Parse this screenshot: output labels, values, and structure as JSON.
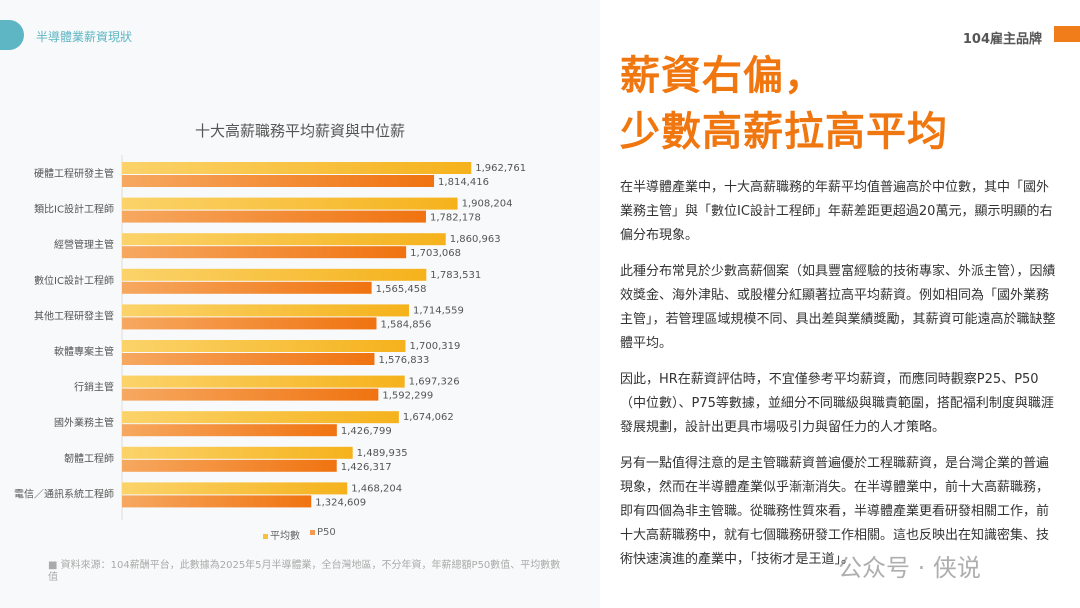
{
  "header": {
    "section": "半導體業薪資現狀",
    "brand": "104雇主品牌"
  },
  "headline": [
    "薪資右偏，",
    "少數高薪拉高平均"
  ],
  "paragraphs": [
    "在半導體產業中，十大高薪職務的年薪平均值普遍高於中位數，其中「國外業務主管」與「數位IC設計工程師」年薪差距更超過20萬元，顯示明顯的右偏分布現象。",
    "此種分布常見於少數高薪個案（如具豐富經驗的技術專家、外派主管），因績效獎金、海外津貼、或股權分紅顯著拉高平均薪資。例如相同為「國外業務主管」，若管理區域規模不同、具出差與業績獎勵，其薪資可能遠高於職缺整體平均。",
    "因此，HR在薪資評估時，不宜僅參考平均薪資，而應同時觀察P25、P50（中位數）、P75等數據，並細分不同職級與職責範圍，搭配福利制度與職涯發展規劃，設計出更具市場吸引力與留任力的人才策略。",
    "另有一點值得注意的是主管職薪資普遍優於工程職薪資，是台灣企業的普遍現象，然而在半導體產業似乎漸漸消失。在半導體業中，前十大高薪職務，即有四個為非主管職。從職務性質來看，半導體產業更看研發相關工作，前十大高薪職務中，就有七個職務研發工作相關。這也反映出在知識密集、技術快速演進的產業中，「技術才是王道」。"
  ],
  "source": "資料來源：104薪酬平台，此數據為2025年5月半導體業，全台灣地區，不分年資，年薪總額P50數值、平均數數值",
  "watermark": "公众号 · 侠说",
  "colors": {
    "accent": "#f0760f",
    "teal": "#5eb6c4",
    "avg": "#f7b92a",
    "p50": "#f07c1a"
  },
  "chart_data": {
    "type": "bar",
    "orientation": "horizontal",
    "title": "十大高薪職務平均薪資與中位薪",
    "categories": [
      "硬體工程研發主管",
      "類比IC設計工程師",
      "經營管理主管",
      "數位IC設計工程師",
      "其他工程研發主管",
      "軟體專案主管",
      "行銷主管",
      "國外業務主管",
      "韌體工程師",
      "電信／通訊系統工程師"
    ],
    "series": [
      {
        "name": "平均數",
        "labels": [
          "1,962,761",
          "1,908,204",
          "1,860,963",
          "1,783,531",
          "1,714,559",
          "1,700,319",
          "1,697,326",
          "1,674,062",
          "1,489,935",
          "1,468,204"
        ],
        "values": [
          1962761,
          1908204,
          1860963,
          1783531,
          1714559,
          1700319,
          1697326,
          1674062,
          1489935,
          1468204
        ]
      },
      {
        "name": "P50",
        "labels": [
          "1,814,416",
          "1,782,178",
          "1,703,068",
          "1,565,458",
          "1,584,856",
          "1,576,833",
          "1,592,299",
          "1,426,799",
          "1,426,317",
          "1,324,609"
        ],
        "values": [
          1814416,
          1782178,
          1703068,
          1565458,
          1584856,
          1576833,
          1592299,
          1426799,
          1426317,
          1324609
        ]
      }
    ],
    "xlim": [
      570000,
      2000000
    ],
    "legend": "bottom",
    "grid": false
  }
}
